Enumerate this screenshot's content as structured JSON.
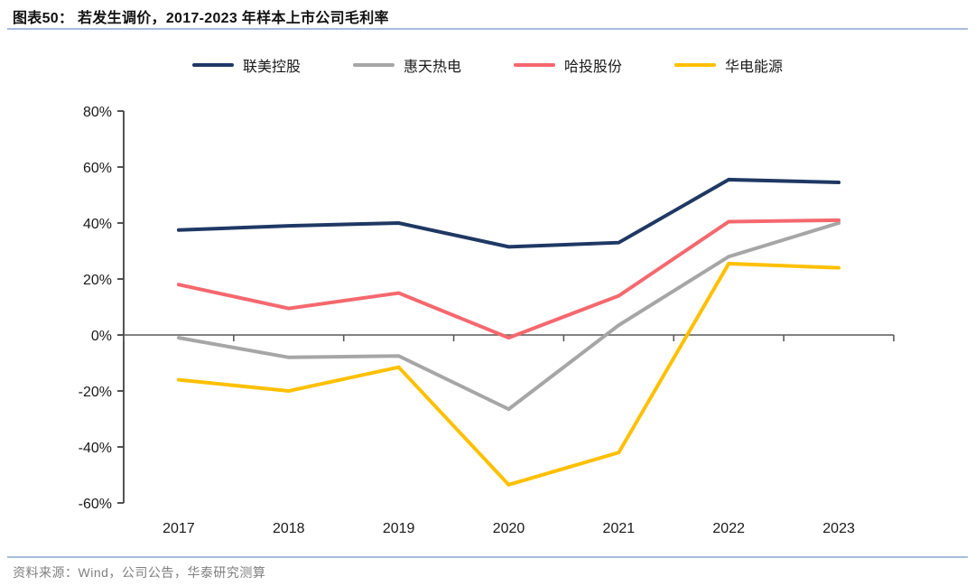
{
  "page": {
    "title": "图表50：  若发生调价，2017-2023 年样本上市公司毛利率",
    "source": "资料来源：Wind，公司公告，华泰研究测算"
  },
  "colors": {
    "rule_blue": "#a8bcd8",
    "axis": "#404040",
    "tick_text": "#1a1a1a",
    "source_text": "#7f7f7f",
    "series_navy": "#1f3864",
    "series_gray": "#a6a6a6",
    "series_red": "#f5686e",
    "series_yellow": "#ffc000"
  },
  "chart_data": {
    "type": "line",
    "title": "若发生调价，2017-2023 年样本上市公司毛利率",
    "categories": [
      "2017",
      "2018",
      "2019",
      "2020",
      "2021",
      "2022",
      "2023"
    ],
    "series": [
      {
        "name": "联美控股",
        "color": "#1f3864",
        "values": [
          37.5,
          39,
          40,
          31.5,
          33,
          55.5,
          54.5
        ]
      },
      {
        "name": "惠天热电",
        "color": "#a6a6a6",
        "values": [
          -1,
          -8,
          -7.5,
          -26.5,
          3.5,
          28,
          40
        ]
      },
      {
        "name": "哈投股份",
        "color": "#f5686e",
        "values": [
          18,
          9.5,
          15,
          -1,
          14,
          40.5,
          41
        ]
      },
      {
        "name": "华电能源",
        "color": "#ffc000",
        "values": [
          -16,
          -20,
          -11.5,
          -53.5,
          -42,
          25.5,
          24
        ]
      }
    ],
    "xlabel": "",
    "ylabel": "",
    "ylim": [
      -60,
      80
    ],
    "ytick_step": 20,
    "ytick_labels": [
      "80%",
      "60%",
      "40%",
      "20%",
      "0%",
      "-20%",
      "-40%",
      "-60%"
    ],
    "grid": false,
    "legend_position": "top",
    "unit": "percent"
  }
}
